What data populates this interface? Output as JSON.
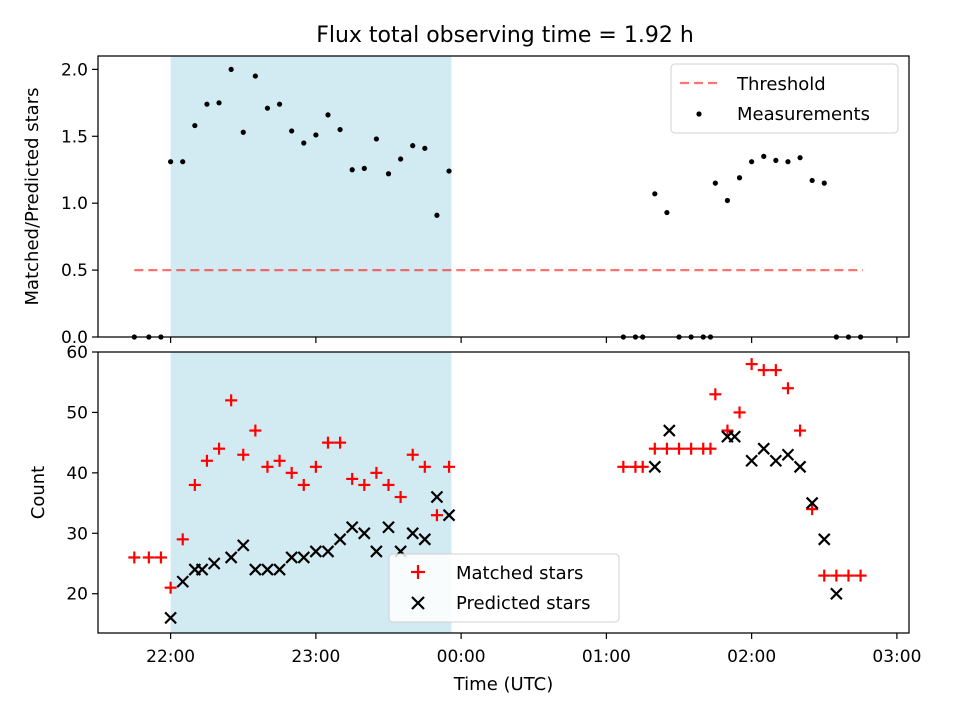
{
  "colors": {
    "shade": "#add8e6",
    "threshold": "#ff0000",
    "matched": "#ff0000",
    "predicted": "#000000",
    "measure": "#000000"
  },
  "chart_data": [
    {
      "type": "scatter",
      "title": "Flux total observing time = 1.92 h",
      "xlabel": "",
      "ylabel": "Matched/Predicted stars",
      "ylim": [
        0,
        2.1
      ],
      "yticks": [
        "0.0",
        "0.5",
        "1.0",
        "1.5",
        "2.0"
      ],
      "ytick_values": [
        0,
        0.5,
        1,
        1.5,
        2
      ],
      "legend": {
        "placement": "top-right",
        "entries": [
          "Threshold",
          "Measurements"
        ]
      },
      "shaded_interval": [
        "22:00",
        "23:56"
      ],
      "threshold": {
        "y": 0.5,
        "x_start": "21:45",
        "x_end": "02:46",
        "style": "dashed"
      },
      "x": [
        "21:45",
        "21:51",
        "21:56",
        "22:00",
        "22:05",
        "22:10",
        "22:15",
        "22:20",
        "22:25",
        "22:30",
        "22:35",
        "22:40",
        "22:45",
        "22:50",
        "22:55",
        "23:00",
        "23:05",
        "23:10",
        "23:15",
        "23:20",
        "23:25",
        "23:30",
        "23:35",
        "23:40",
        "23:45",
        "23:50",
        "23:55",
        "01:07",
        "01:12",
        "01:15",
        "01:20",
        "01:25",
        "01:30",
        "01:35",
        "01:40",
        "01:43",
        "01:45",
        "01:50",
        "01:55",
        "02:00",
        "02:05",
        "02:10",
        "02:15",
        "02:20",
        "02:25",
        "02:30",
        "02:35",
        "02:40",
        "02:45"
      ],
      "y": [
        0,
        0,
        0,
        1.31,
        1.31,
        1.58,
        1.74,
        1.75,
        2.0,
        1.53,
        1.95,
        1.71,
        1.74,
        1.54,
        1.45,
        1.51,
        1.66,
        1.55,
        1.25,
        1.26,
        1.48,
        1.22,
        1.33,
        1.43,
        1.41,
        0.91,
        1.24,
        0,
        0,
        0,
        1.07,
        0.93,
        0,
        0,
        0,
        0,
        1.15,
        1.02,
        1.19,
        1.31,
        1.35,
        1.32,
        1.31,
        1.34,
        1.17,
        1.15,
        0,
        0,
        0
      ]
    },
    {
      "type": "scatter",
      "title": "",
      "xlabel": "Time (UTC)",
      "ylabel": "Count",
      "ylim": [
        13.5,
        60
      ],
      "yticks": [
        "20",
        "30",
        "40",
        "50",
        "60"
      ],
      "ytick_values": [
        20,
        30,
        40,
        50,
        60
      ],
      "xticks": [
        "22:00",
        "23:00",
        "00:00",
        "01:00",
        "02:00",
        "03:00"
      ],
      "xlim": [
        "21:30",
        "03:05"
      ],
      "legend": {
        "placement": "bottom-center",
        "entries": [
          "Matched stars",
          "Predicted stars"
        ]
      },
      "shaded_interval": [
        "22:00",
        "23:56"
      ],
      "series": [
        {
          "name": "Matched stars",
          "marker": "+",
          "x": [
            "21:45",
            "21:51",
            "21:56",
            "22:00",
            "22:05",
            "22:10",
            "22:15",
            "22:20",
            "22:25",
            "22:30",
            "22:35",
            "22:40",
            "22:45",
            "22:50",
            "22:55",
            "23:00",
            "23:05",
            "23:10",
            "23:15",
            "23:20",
            "23:25",
            "23:30",
            "23:35",
            "23:40",
            "23:45",
            "23:50",
            "23:55",
            "01:07",
            "01:12",
            "01:15",
            "01:20",
            "01:25",
            "01:30",
            "01:35",
            "01:40",
            "01:43",
            "01:45",
            "01:50",
            "01:55",
            "02:00",
            "02:05",
            "02:10",
            "02:15",
            "02:20",
            "02:25",
            "02:30",
            "02:35",
            "02:40",
            "02:45"
          ],
          "y": [
            26,
            26,
            26,
            21,
            29,
            38,
            42,
            44,
            52,
            43,
            47,
            41,
            42,
            40,
            38,
            41,
            45,
            45,
            39,
            38,
            40,
            38,
            36,
            43,
            41,
            33,
            41,
            41,
            41,
            41,
            44,
            44,
            44,
            44,
            44,
            44,
            53,
            47,
            50,
            58,
            57,
            57,
            54,
            47,
            34,
            23,
            23,
            23,
            23
          ]
        },
        {
          "name": "Predicted stars",
          "marker": "x",
          "x": [
            "22:00",
            "22:05",
            "22:10",
            "22:13",
            "22:18",
            "22:25",
            "22:30",
            "22:35",
            "22:40",
            "22:45",
            "22:50",
            "22:55",
            "23:00",
            "23:05",
            "23:10",
            "23:15",
            "23:20",
            "23:25",
            "23:30",
            "23:35",
            "23:40",
            "23:45",
            "23:50",
            "23:55",
            "01:20",
            "01:26",
            "01:50",
            "01:53",
            "02:00",
            "02:05",
            "02:10",
            "02:15",
            "02:20",
            "02:25",
            "02:30",
            "02:35"
          ],
          "y": [
            16,
            22,
            24,
            24,
            25,
            26,
            28,
            24,
            24,
            24,
            26,
            26,
            27,
            27,
            29,
            31,
            30,
            27,
            31,
            27,
            30,
            29,
            36,
            33,
            41,
            47,
            46,
            46,
            42,
            44,
            42,
            43,
            41,
            35,
            29,
            20
          ]
        }
      ]
    }
  ]
}
